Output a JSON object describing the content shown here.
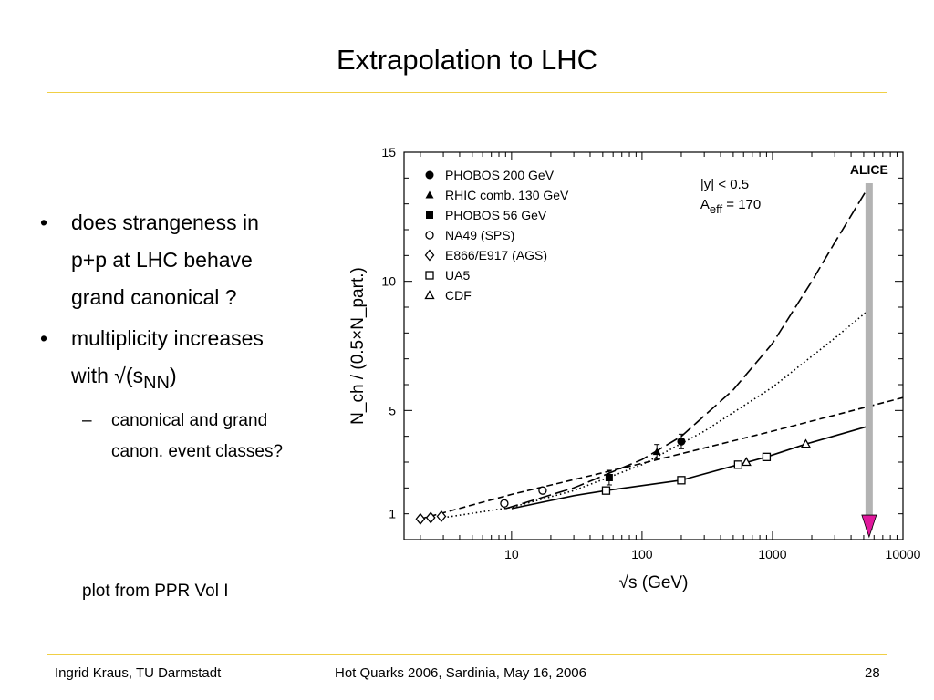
{
  "slide": {
    "title": "Extrapolation to LHC",
    "bullets": [
      {
        "lines": [
          "does strangeness in",
          "p+p at LHC behave",
          "grand canonical ?"
        ]
      },
      {
        "lines": [
          "multiplicity increases"
        ],
        "with_text": "with √(s",
        "sub": "NN",
        "close": ")"
      }
    ],
    "sub_bullet": {
      "lines": [
        "canonical and grand",
        "canon. event classes?"
      ]
    },
    "source_note": "plot from PPR Vol I",
    "bullet_symbol": "•",
    "dash_symbol": "–"
  },
  "footer": {
    "author": "Ingrid Kraus, TU Darmstadt",
    "event": "Hot Quarks 2006, Sardinia, May 16, 2006",
    "page": "28"
  },
  "colors": {
    "rule": "#f0cf45",
    "alice_bar": "#b3b3b3",
    "alice_arrow": "#e0189c"
  },
  "chart_data": {
    "type": "scatter",
    "x_scale": "log",
    "xlim": [
      1.5,
      10000
    ],
    "ylim": [
      0,
      15
    ],
    "xlabel": "√s (GeV)",
    "ylabel": "N_ch / (0.5×N_part.)",
    "x_ticks": [
      10,
      100,
      1000,
      10000
    ],
    "x_tick_labels": [
      "10",
      "100",
      "1000",
      "10000"
    ],
    "y_ticks": [
      1,
      5,
      10,
      15
    ],
    "y_tick_labels": [
      "1",
      "5",
      "10",
      "15"
    ],
    "legend_position": "top-left",
    "annotations": {
      "rapidity": "|y| < 0.5",
      "a_eff_pre": "A",
      "a_eff_sub": "eff",
      "a_eff_post": " = 170",
      "alice_label": "ALICE",
      "alice_x": 5500
    },
    "series": [
      {
        "name": "PHOBOS 200 GeV",
        "marker": "filled-circle",
        "points": [
          [
            200,
            3.8
          ]
        ]
      },
      {
        "name": "RHIC comb. 130 GeV",
        "marker": "filled-triangle",
        "points": [
          [
            130,
            3.4
          ]
        ]
      },
      {
        "name": "PHOBOS 56 GeV",
        "marker": "filled-square",
        "points": [
          [
            56,
            2.4
          ]
        ]
      },
      {
        "name": "NA49 (SPS)",
        "marker": "open-circle",
        "points": [
          [
            8.8,
            1.4
          ],
          [
            17.3,
            1.9
          ]
        ]
      },
      {
        "name": "E866/E917 (AGS)",
        "marker": "open-diamond",
        "points": [
          [
            2.0,
            0.8
          ],
          [
            2.4,
            0.85
          ],
          [
            2.9,
            0.9
          ]
        ]
      },
      {
        "name": "UA5",
        "marker": "open-square",
        "points": [
          [
            53,
            1.9
          ],
          [
            200,
            2.3
          ],
          [
            546,
            2.9
          ],
          [
            900,
            3.2
          ]
        ]
      },
      {
        "name": "CDF",
        "marker": "open-triangle",
        "points": [
          [
            630,
            3.0
          ],
          [
            1800,
            3.7
          ]
        ]
      }
    ],
    "curves": [
      {
        "style": "long-dash",
        "points": [
          [
            9,
            1.2
          ],
          [
            30,
            2.0
          ],
          [
            100,
            3.1
          ],
          [
            200,
            4.0
          ],
          [
            500,
            5.8
          ],
          [
            1000,
            7.6
          ],
          [
            2000,
            10.0
          ],
          [
            3000,
            11.5
          ],
          [
            5500,
            13.7
          ]
        ]
      },
      {
        "style": "dotted",
        "points": [
          [
            3,
            0.85
          ],
          [
            10,
            1.25
          ],
          [
            30,
            1.9
          ],
          [
            100,
            2.9
          ],
          [
            300,
            4.2
          ],
          [
            1000,
            5.9
          ],
          [
            3000,
            7.8
          ],
          [
            5500,
            8.9
          ]
        ]
      },
      {
        "style": "short-dash",
        "points": [
          [
            2,
            0.8
          ],
          [
            10,
            1.75
          ],
          [
            100,
            2.95
          ],
          [
            1000,
            4.2
          ],
          [
            10000,
            5.5
          ]
        ]
      },
      {
        "style": "solid",
        "points": [
          [
            10,
            1.2
          ],
          [
            30,
            1.7
          ],
          [
            53,
            1.9
          ],
          [
            200,
            2.3
          ],
          [
            546,
            2.9
          ],
          [
            900,
            3.2
          ],
          [
            1800,
            3.7
          ],
          [
            5500,
            4.4
          ]
        ]
      }
    ]
  }
}
